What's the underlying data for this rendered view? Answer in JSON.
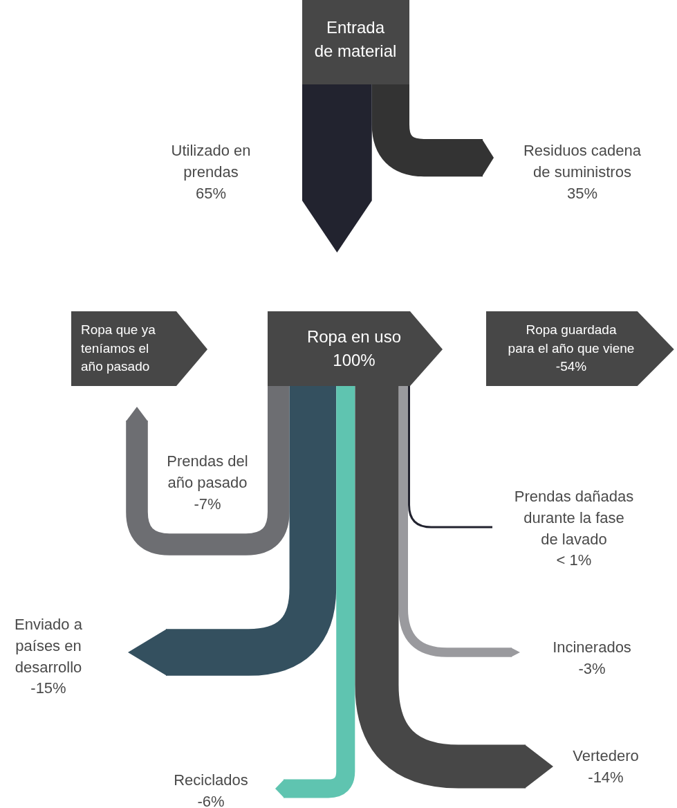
{
  "chart_data": {
    "type": "other",
    "categories": [
      "Entrada de material",
      "Utilizado en prendas",
      "Residuos cadena de suministros",
      "Ropa que ya teníamos el año pasado",
      "Ropa en uso",
      "Ropa guardada para el año que viene",
      "Prendas del año pasado",
      "Enviado a países en desarrollo",
      "Reciclados",
      "Vertedero",
      "Incinerados",
      "Prendas dañadas durante la fase de lavado"
    ],
    "values": [
      null,
      65,
      35,
      null,
      100,
      -54,
      -7,
      -15,
      -6,
      -14,
      -3,
      null
    ],
    "value_labels": [
      null,
      "65%",
      "35%",
      null,
      "100%",
      "-54%",
      "-7%",
      "-15%",
      "-6%",
      "-14%",
      "-3%",
      "< 1%"
    ],
    "colors": [
      "#474747",
      "#22232f",
      "#333333",
      "#474747",
      "#474747",
      "#474747",
      "#6d6e72",
      "#34505f",
      "#5fc4b0",
      "#474747",
      "#9a9a9e",
      "#22232f"
    ]
  }
}
